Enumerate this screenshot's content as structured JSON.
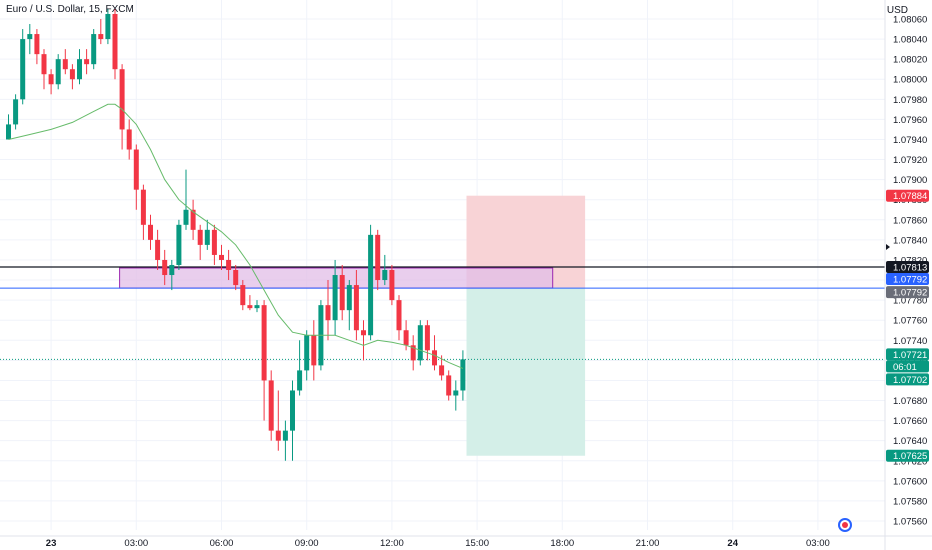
{
  "header": {
    "symbol_title": "Euro / U.S. Dollar, 15, FXCM",
    "currency": "USD"
  },
  "colors": {
    "up": "#089981",
    "down": "#f23645",
    "ma": "#66bb6a",
    "zone_fill": "#e1bee7",
    "zone_border": "#9c27b0",
    "stop_fill": "#f8d3d6",
    "target_fill": "#d4efe8",
    "grid": "#f0f3fa",
    "axis_text": "#131722"
  },
  "chart_data": {
    "type": "candlestick",
    "y_range": [
      1.0755,
      1.08072
    ],
    "y_ticks": [
      "1.08060",
      "1.08040",
      "1.08020",
      "1.08000",
      "1.07980",
      "1.07960",
      "1.07940",
      "1.07920",
      "1.07900",
      "1.07880",
      "1.07860",
      "1.07840",
      "1.07820",
      "1.07800",
      "1.07780",
      "1.07760",
      "1.07740",
      "1.07720",
      "1.07700",
      "1.07680",
      "1.07660",
      "1.07640",
      "1.07620",
      "1.07600",
      "1.07580",
      "1.07560"
    ],
    "x_ticks": [
      {
        "label": "23",
        "bar": 6,
        "bold": true
      },
      {
        "label": "03:00",
        "bar": 18
      },
      {
        "label": "06:00",
        "bar": 30
      },
      {
        "label": "09:00",
        "bar": 42
      },
      {
        "label": "12:00",
        "bar": 54
      },
      {
        "label": "15:00",
        "bar": 66
      },
      {
        "label": "18:00",
        "bar": 78
      },
      {
        "label": "21:00",
        "bar": 90
      },
      {
        "label": "24",
        "bar": 102,
        "bold": true
      },
      {
        "label": "03:00",
        "bar": 114
      }
    ],
    "candles": [
      [
        1.0794,
        1.07965,
        1.0794,
        1.07955
      ],
      [
        1.07955,
        1.07985,
        1.0795,
        1.0798
      ],
      [
        1.0798,
        1.0805,
        1.07975,
        1.0804
      ],
      [
        1.0804,
        1.08055,
        1.08025,
        1.08045
      ],
      [
        1.08045,
        1.0805,
        1.08015,
        1.08025
      ],
      [
        1.08025,
        1.0803,
        1.0799,
        1.08005
      ],
      [
        1.08005,
        1.0801,
        1.07985,
        1.07995
      ],
      [
        1.07995,
        1.08025,
        1.0799,
        1.0802
      ],
      [
        1.0802,
        1.0803,
        1.08005,
        1.0801
      ],
      [
        1.0801,
        1.08015,
        1.0799,
        1.08
      ],
      [
        1.08,
        1.0803,
        1.07995,
        1.0802
      ],
      [
        1.0802,
        1.0803,
        1.08005,
        1.08015
      ],
      [
        1.08015,
        1.0805,
        1.0801,
        1.08045
      ],
      [
        1.08045,
        1.0806,
        1.08035,
        1.0804
      ],
      [
        1.0804,
        1.0807,
        1.08035,
        1.08065
      ],
      [
        1.08065,
        1.0807,
        1.08,
        1.0801
      ],
      [
        1.0801,
        1.08015,
        1.0793,
        1.0795
      ],
      [
        1.0795,
        1.0796,
        1.0792,
        1.0793
      ],
      [
        1.0793,
        1.07935,
        1.0787,
        1.0789
      ],
      [
        1.0789,
        1.07895,
        1.0784,
        1.07855
      ],
      [
        1.07855,
        1.07865,
        1.0783,
        1.0784
      ],
      [
        1.0784,
        1.0785,
        1.0781,
        1.0782
      ],
      [
        1.0782,
        1.0783,
        1.07795,
        1.07805
      ],
      [
        1.07805,
        1.0782,
        1.0779,
        1.07815
      ],
      [
        1.07815,
        1.0786,
        1.0781,
        1.07855
      ],
      [
        1.07855,
        1.0791,
        1.0785,
        1.0787
      ],
      [
        1.0787,
        1.0788,
        1.0784,
        1.0785
      ],
      [
        1.0785,
        1.07855,
        1.0782,
        1.07835
      ],
      [
        1.07835,
        1.0786,
        1.0783,
        1.0785
      ],
      [
        1.0785,
        1.07855,
        1.07815,
        1.07825
      ],
      [
        1.07825,
        1.07835,
        1.0781,
        1.0782
      ],
      [
        1.0782,
        1.0783,
        1.078,
        1.0781
      ],
      [
        1.0781,
        1.07815,
        1.0779,
        1.07795
      ],
      [
        1.07795,
        1.078,
        1.0777,
        1.07775
      ],
      [
        1.07775,
        1.07785,
        1.0777,
        1.07772
      ],
      [
        1.07772,
        1.0778,
        1.07768,
        1.07775
      ],
      [
        1.07775,
        1.0778,
        1.0766,
        1.077
      ],
      [
        1.077,
        1.0771,
        1.0764,
        1.0765
      ],
      [
        1.0765,
        1.0769,
        1.0763,
        1.0764
      ],
      [
        1.0764,
        1.0766,
        1.0762,
        1.0765
      ],
      [
        1.0765,
        1.077,
        1.0762,
        1.0769
      ],
      [
        1.0769,
        1.0774,
        1.07685,
        1.0771
      ],
      [
        1.0771,
        1.0775,
        1.077,
        1.07745
      ],
      [
        1.07745,
        1.0776,
        1.077,
        1.07715
      ],
      [
        1.07715,
        1.0778,
        1.0771,
        1.07775
      ],
      [
        1.07775,
        1.078,
        1.0774,
        1.0776
      ],
      [
        1.0776,
        1.0782,
        1.07745,
        1.07805
      ],
      [
        1.07805,
        1.07815,
        1.0776,
        1.0777
      ],
      [
        1.0777,
        1.078,
        1.0775,
        1.07795
      ],
      [
        1.07795,
        1.0781,
        1.0774,
        1.0775
      ],
      [
        1.0775,
        1.0776,
        1.0772,
        1.07745
      ],
      [
        1.07745,
        1.07855,
        1.0774,
        1.07845
      ],
      [
        1.07845,
        1.0785,
        1.0779,
        1.078
      ],
      [
        1.078,
        1.07825,
        1.07795,
        1.0781
      ],
      [
        1.0781,
        1.07815,
        1.07775,
        1.0778
      ],
      [
        1.0778,
        1.07785,
        1.0774,
        1.0775
      ],
      [
        1.0775,
        1.0776,
        1.0773,
        1.07735
      ],
      [
        1.07735,
        1.07745,
        1.0771,
        1.0772
      ],
      [
        1.0772,
        1.0776,
        1.07715,
        1.07755
      ],
      [
        1.07755,
        1.0776,
        1.0772,
        1.0773
      ],
      [
        1.0773,
        1.07745,
        1.0771,
        1.07715
      ],
      [
        1.07715,
        1.07725,
        1.077,
        1.07705
      ],
      [
        1.07705,
        1.0771,
        1.0768,
        1.07685
      ],
      [
        1.07685,
        1.077,
        1.0767,
        1.0769
      ],
      [
        1.0769,
        1.0773,
        1.0768,
        1.07721
      ]
    ],
    "moving_average": [
      [
        0,
        1.0794
      ],
      [
        3,
        1.07945
      ],
      [
        6,
        1.0795
      ],
      [
        9,
        1.07957
      ],
      [
        12,
        1.07968
      ],
      [
        14,
        1.07975
      ],
      [
        15,
        1.07975
      ],
      [
        16,
        1.0797
      ],
      [
        18,
        1.07955
      ],
      [
        20,
        1.0793
      ],
      [
        22,
        1.079
      ],
      [
        24,
        1.0788
      ],
      [
        26,
        1.07868
      ],
      [
        28,
        1.07858
      ],
      [
        30,
        1.07848
      ],
      [
        32,
        1.07835
      ],
      [
        34,
        1.07815
      ],
      [
        36,
        1.0779
      ],
      [
        38,
        1.07765
      ],
      [
        40,
        1.07748
      ],
      [
        42,
        1.07745
      ],
      [
        44,
        1.07745
      ],
      [
        46,
        1.07745
      ],
      [
        48,
        1.0774
      ],
      [
        50,
        1.07735
      ],
      [
        52,
        1.0774
      ],
      [
        54,
        1.07738
      ],
      [
        56,
        1.07735
      ],
      [
        58,
        1.0773
      ],
      [
        60,
        1.07725
      ],
      [
        62,
        1.07718
      ],
      [
        64,
        1.07712
      ]
    ],
    "horizontal_lines": [
      {
        "price": 1.07813,
        "color": "#131722",
        "width": 1.2
      },
      {
        "price": 1.07792,
        "color": "#2962ff",
        "width": 1
      }
    ],
    "current_price_line": 1.07721,
    "supply_zone": {
      "start_bar": 16,
      "end_bar": 77,
      "top": 1.07812,
      "bottom": 1.07792
    },
    "position": {
      "start_bar": 65,
      "end_bar": 81,
      "stop": 1.07884,
      "entry": 1.07792,
      "target": 1.07625
    },
    "price_labels": [
      {
        "text": "1.07884",
        "price": 1.07884,
        "bg": "#f23645",
        "fg": "#ffffff"
      },
      {
        "text": "1.07820",
        "price": 1.0782,
        "bg": "#ffffff",
        "fg": "#131722"
      },
      {
        "text": "1.07813",
        "price": 1.07813,
        "bg": "#131722",
        "fg": "#ffffff"
      },
      {
        "text": "1.07792",
        "price": 1.07801,
        "bg": "#2962ff",
        "fg": "#ffffff"
      },
      {
        "text": "1.07792",
        "price": 1.07788,
        "bg": "#6a6d78",
        "fg": "#ffffff"
      },
      {
        "text": "1.07721",
        "price": 1.07726,
        "bg": "#089981",
        "fg": "#ffffff"
      },
      {
        "text": "06:01",
        "price": 1.07714,
        "bg": "#089981",
        "fg": "#ffffff"
      },
      {
        "text": "1.07702",
        "price": 1.07701,
        "bg": "#089981",
        "fg": "#ffffff"
      },
      {
        "text": "1.07625",
        "price": 1.07625,
        "bg": "#089981",
        "fg": "#ffffff"
      }
    ]
  }
}
